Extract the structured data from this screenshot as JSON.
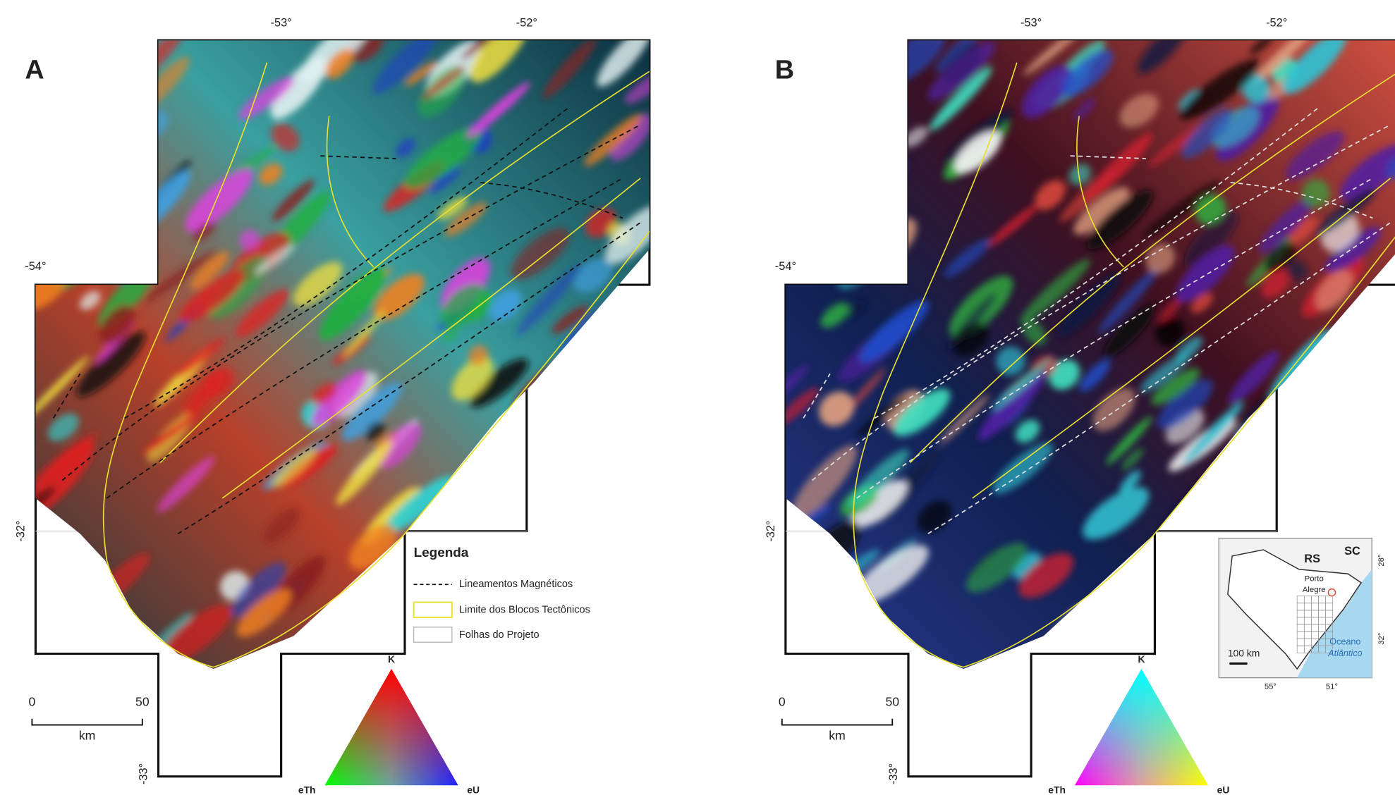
{
  "panels": [
    {
      "label": "A",
      "lon_labels": [
        "-53°",
        "-52°",
        "-54°"
      ],
      "lat_labels": [
        "-32°",
        "-33°"
      ],
      "scale": {
        "start": "0",
        "end": "50",
        "unit": "km"
      },
      "ternary": {
        "top": "K",
        "left": "eTh",
        "right": "eU"
      }
    },
    {
      "label": "B",
      "lon_labels": [
        "-53°",
        "-52°",
        "-54°"
      ],
      "lat_labels": [
        "-32°",
        "-33°"
      ],
      "scale": {
        "start": "0",
        "end": "50",
        "unit": "km"
      },
      "ternary": {
        "top": "K",
        "left": "eTh",
        "right": "eU"
      }
    }
  ],
  "legend": {
    "title": "Legenda",
    "items": [
      "Lineamentos Magnéticos",
      "Limite dos Blocos Tectônicos",
      "Folhas do Projeto"
    ]
  },
  "inset": {
    "states": [
      "RS",
      "SC"
    ],
    "city": [
      "Porto",
      "Alegre"
    ],
    "scale": "100 km",
    "ocean": [
      "Oceano",
      "Atlântico"
    ],
    "lon_labels": [
      "55°",
      "51°"
    ],
    "lat_labels": [
      "28°",
      "32°"
    ]
  }
}
